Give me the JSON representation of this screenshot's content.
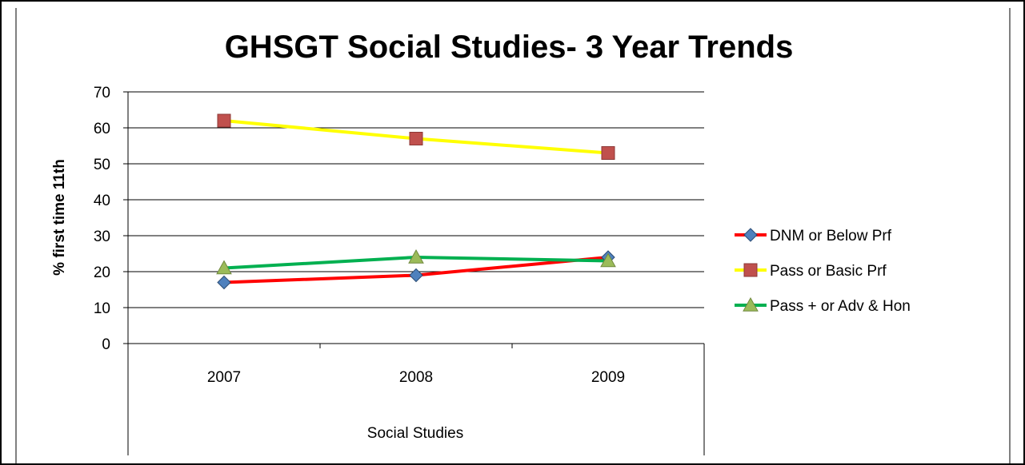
{
  "chart_data": {
    "type": "line",
    "title": "GHSGT Social Studies- 3 Year Trends",
    "xlabel": "Social Studies",
    "ylabel": "% first time 11th",
    "categories": [
      "2007",
      "2008",
      "2009"
    ],
    "ylim": [
      0,
      70
    ],
    "yticks": [
      "0",
      "10",
      "20",
      "30",
      "40",
      "50",
      "60",
      "70"
    ],
    "grid": true,
    "legend_position": "right",
    "series": [
      {
        "name": "DNM or Below Prf",
        "values": [
          17,
          19,
          24
        ],
        "color": "#ff0000",
        "marker": "diamond",
        "marker_color": "#4f81bd"
      },
      {
        "name": "Pass or Basic Prf",
        "values": [
          62,
          57,
          53
        ],
        "color": "#ffff00",
        "marker": "square",
        "marker_color": "#c0504d"
      },
      {
        "name": "Pass + or Adv & Hon",
        "values": [
          21,
          24,
          23
        ],
        "color": "#00b050",
        "marker": "triangle",
        "marker_color": "#9bbb59"
      }
    ]
  }
}
